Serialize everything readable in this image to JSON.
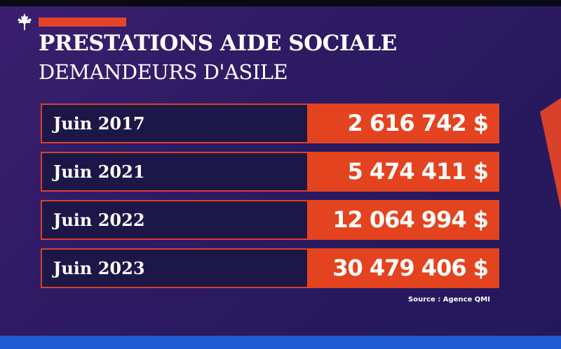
{
  "header": {
    "title": "PRESTATIONS AIDE SOCIALE",
    "subtitle": "DEMANDEURS D'ASILE"
  },
  "table": {
    "rows": [
      [
        "Juin 2017",
        "2 616 742 $"
      ],
      [
        "Juin 2021",
        "5 474 411 $"
      ],
      [
        "Juin 2022",
        "12 064 994 $"
      ],
      [
        "Juin 2023",
        "30 479 406 $"
      ]
    ]
  },
  "source": "Source : Agence QMI"
}
